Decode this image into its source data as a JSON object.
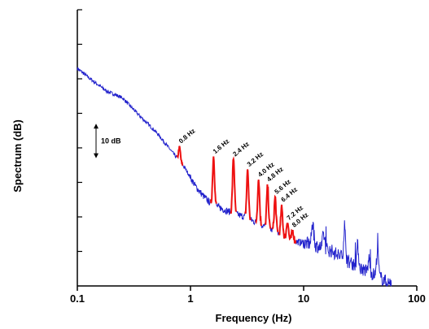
{
  "chart_data": {
    "type": "line",
    "xlabel": "Frequency (Hz)",
    "ylabel": "Spectrum (dB)",
    "x_scale": "log",
    "xlim": [
      0.1,
      100
    ],
    "ylim": [
      0,
      80
    ],
    "x_ticks": [
      "0.1",
      "1",
      "10",
      "100"
    ],
    "y_ticks_count": 8,
    "grid": false,
    "scale_bar": {
      "label": "10 dB",
      "value": 10
    },
    "series": [
      {
        "color": "#2222cc",
        "baseline": [
          [
            0.1,
            63
          ],
          [
            0.13,
            60
          ],
          [
            0.18,
            56.5
          ],
          [
            0.25,
            54.5
          ],
          [
            0.35,
            49.5
          ],
          [
            0.5,
            44.5
          ],
          [
            0.7,
            38.5
          ],
          [
            0.9,
            34
          ],
          [
            1.1,
            29
          ],
          [
            1.3,
            26
          ],
          [
            1.5,
            24
          ],
          [
            2,
            22
          ],
          [
            3,
            20
          ],
          [
            5,
            16.5
          ],
          [
            8,
            13
          ],
          [
            12,
            12
          ],
          [
            18,
            10
          ],
          [
            25,
            7
          ],
          [
            35,
            4.5
          ],
          [
            50,
            2
          ],
          [
            60,
            0
          ]
        ],
        "peaks": [
          [
            0.8,
            4
          ],
          [
            1.6,
            14
          ],
          [
            2.4,
            16
          ],
          [
            3.2,
            14
          ],
          [
            4.0,
            13
          ],
          [
            4.8,
            12
          ],
          [
            5.6,
            10
          ],
          [
            6.4,
            8
          ],
          [
            7.2,
            5
          ],
          [
            8.0,
            3
          ],
          [
            12,
            6
          ],
          [
            15,
            4
          ],
          [
            23,
            9
          ],
          [
            30,
            6
          ],
          [
            38,
            4
          ],
          [
            45,
            8
          ]
        ]
      }
    ],
    "annotations": [
      {
        "label": "0.8 Hz",
        "x": 0.8
      },
      {
        "label": "1.6 Hz",
        "x": 1.6
      },
      {
        "label": "2.4 Hz",
        "x": 2.4
      },
      {
        "label": "3.2 Hz",
        "x": 3.2
      },
      {
        "label": "4.0 Hz",
        "x": 4.0
      },
      {
        "label": "4.8 Hz",
        "x": 4.8
      },
      {
        "label": "5.6 Hz",
        "x": 5.6
      },
      {
        "label": "6.4 Hz",
        "x": 6.4
      },
      {
        "label": "7.2 Hz",
        "x": 7.2
      },
      {
        "label": "8.0 Hz",
        "x": 8.0
      }
    ],
    "highlight_color": "#ee1111"
  }
}
